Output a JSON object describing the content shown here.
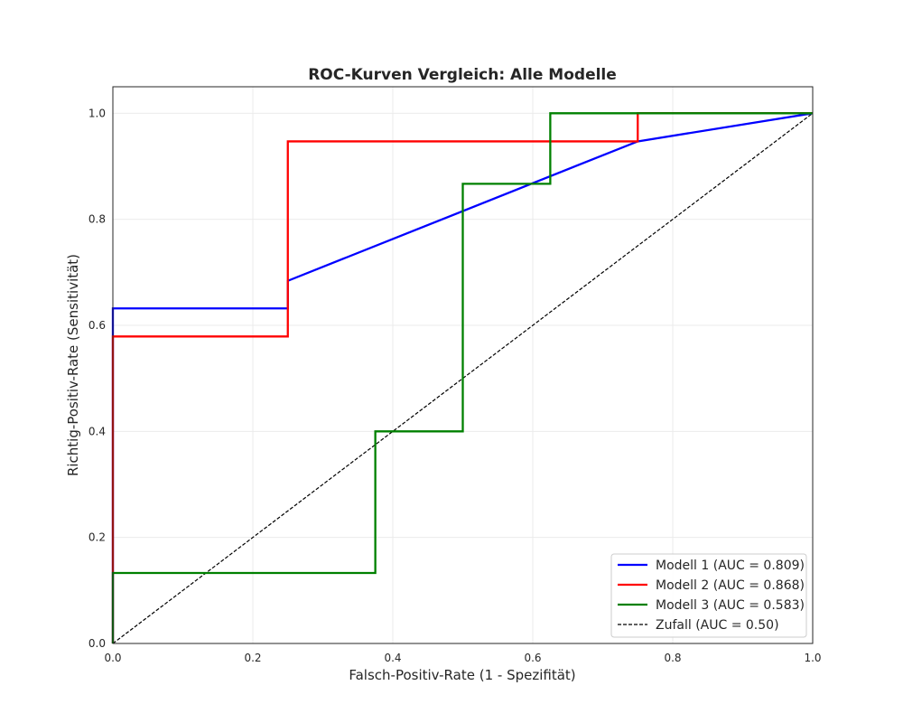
{
  "chart_data": {
    "type": "line",
    "title": "ROC-Kurven Vergleich: Alle Modelle",
    "xlabel": "Falsch-Positiv-Rate (1 - Spezifität)",
    "ylabel": "Richtig-Positiv-Rate (Sensitivität)",
    "xlim": [
      0.0,
      1.0
    ],
    "ylim": [
      0.0,
      1.05
    ],
    "xticks": [
      0.0,
      0.2,
      0.4,
      0.6,
      0.8,
      1.0
    ],
    "yticks": [
      0.0,
      0.2,
      0.4,
      0.6,
      0.8,
      1.0
    ],
    "xtick_labels": [
      "0.0",
      "0.2",
      "0.4",
      "0.6",
      "0.8",
      "1.0"
    ],
    "ytick_labels": [
      "0.0",
      "0.2",
      "0.4",
      "0.6",
      "0.8",
      "1.0"
    ],
    "grid": true,
    "legend_position": "bottom-right",
    "series": [
      {
        "name": "Modell 1 (AUC = 0.809)",
        "color": "#0000ff",
        "style": "solid",
        "x": [
          0.0,
          0.0,
          0.25,
          0.25,
          0.75,
          1.0
        ],
        "y": [
          0.0,
          0.632,
          0.632,
          0.684,
          0.947,
          1.0
        ]
      },
      {
        "name": "Modell 2 (AUC = 0.868)",
        "color": "#ff0000",
        "style": "solid",
        "x": [
          0.0,
          0.0,
          0.25,
          0.25,
          0.75,
          0.75,
          1.0
        ],
        "y": [
          0.0,
          0.579,
          0.579,
          0.947,
          0.947,
          1.0,
          1.0
        ]
      },
      {
        "name": "Modell 3 (AUC = 0.583)",
        "color": "#008000",
        "style": "solid",
        "x": [
          0.0,
          0.0,
          0.375,
          0.375,
          0.5,
          0.5,
          0.625,
          0.625,
          1.0
        ],
        "y": [
          0.0,
          0.133,
          0.133,
          0.4,
          0.4,
          0.867,
          0.867,
          1.0,
          1.0
        ]
      },
      {
        "name": "Zufall (AUC = 0.50)",
        "color": "#000000",
        "style": "dashed",
        "x": [
          0.0,
          1.0
        ],
        "y": [
          0.0,
          1.0
        ]
      }
    ]
  }
}
